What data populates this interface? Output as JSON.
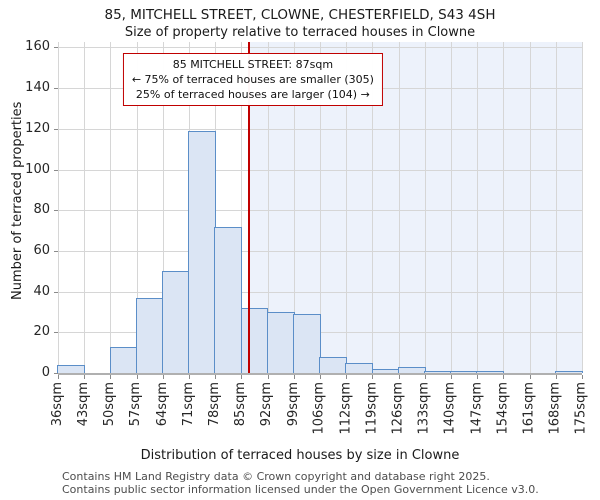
{
  "title": "85, MITCHELL STREET, CLOWNE, CHESTERFIELD, S43 4SH",
  "subtitle": "Size of property relative to terraced houses in Clowne",
  "annotation": {
    "line1": "85 MITCHELL STREET: 87sqm",
    "line2": "← 75% of terraced houses are smaller (305)",
    "line3": "25% of terraced houses are larger (104) →"
  },
  "footer": {
    "line1": "Contains HM Land Registry data © Crown copyright and database right 2025.",
    "line2": "Contains public sector information licensed under the Open Government Licence v3.0."
  },
  "chart_data": {
    "type": "bar",
    "title": "85, MITCHELL STREET, CLOWNE, CHESTERFIELD, S43 4SH",
    "subtitle": "Size of property relative to terraced houses in Clowne",
    "xlabel": "Distribution of terraced houses by size in Clowne",
    "ylabel": "Number of terraced properties",
    "bin_edges_sqm": [
      36,
      43,
      50,
      57,
      64,
      71,
      78,
      85,
      92,
      99,
      106,
      112,
      119,
      126,
      133,
      140,
      147,
      154,
      161,
      168,
      175
    ],
    "categories": [
      "36sqm",
      "43sqm",
      "50sqm",
      "57sqm",
      "64sqm",
      "71sqm",
      "78sqm",
      "85sqm",
      "92sqm",
      "99sqm",
      "106sqm",
      "112sqm",
      "119sqm",
      "126sqm",
      "133sqm",
      "140sqm",
      "147sqm",
      "154sqm",
      "161sqm",
      "168sqm",
      "175sqm"
    ],
    "values": [
      4,
      0,
      13,
      37,
      50,
      119,
      72,
      32,
      30,
      29,
      8,
      5,
      2,
      3,
      1,
      1,
      1,
      0,
      0,
      1
    ],
    "marker_value_sqm": 87,
    "marker_label": "85 MITCHELL STREET: 87sqm",
    "smaller_count": 305,
    "smaller_pct": 75,
    "larger_count": 104,
    "larger_pct": 25,
    "ylim": [
      0,
      160
    ],
    "ytick_step": 20,
    "grid": true,
    "legend": "none",
    "colors": {
      "bar_fill": "#dbe5f4",
      "bar_edge": "#5b8ec8",
      "marker_line": "#c00000",
      "annotation_border": "#c00000",
      "shade_right_of_marker": "#edf2fb",
      "gridline": "#d6d6d6",
      "axis_line": "#b0b0b0"
    }
  }
}
